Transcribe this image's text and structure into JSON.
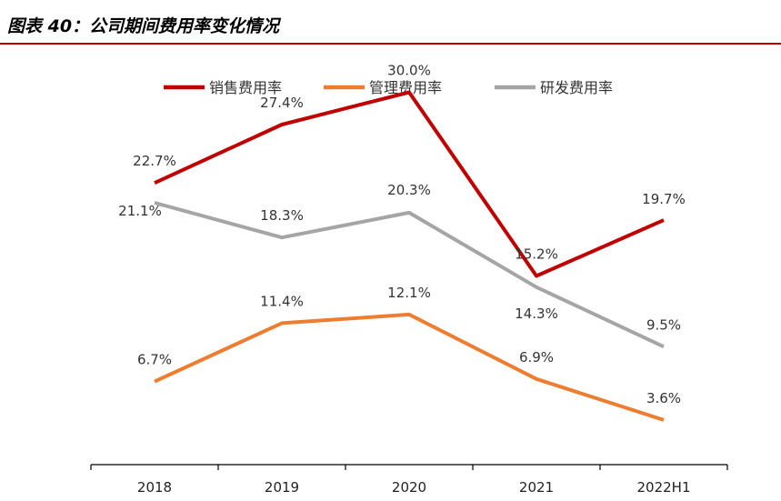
{
  "header": {
    "title": "图表 40：公司期间费用率变化情况"
  },
  "chart_data": {
    "type": "line",
    "categories": [
      "2018",
      "2019",
      "2020",
      "2021",
      "2022H1"
    ],
    "ylim": [
      0,
      35
    ],
    "grid": false,
    "legend_position": "top",
    "series": [
      {
        "name": "销售费用率",
        "color": "#c00000",
        "values": [
          22.7,
          27.4,
          30.0,
          15.2,
          19.7
        ],
        "labels": [
          "22.7%",
          "27.4%",
          "30.0%",
          "15.2%",
          "19.7%"
        ]
      },
      {
        "name": "管理费用率",
        "color": "#ed7d31",
        "values": [
          6.7,
          11.4,
          12.1,
          6.9,
          3.6
        ],
        "labels": [
          "6.7%",
          "11.4%",
          "12.1%",
          "6.9%",
          "3.6%"
        ]
      },
      {
        "name": "研发费用率",
        "color": "#a5a5a5",
        "values": [
          21.1,
          18.3,
          20.3,
          14.3,
          9.5
        ],
        "labels": [
          "21.1%",
          "18.3%",
          "20.3%",
          "14.3%",
          "9.5%"
        ]
      }
    ]
  }
}
